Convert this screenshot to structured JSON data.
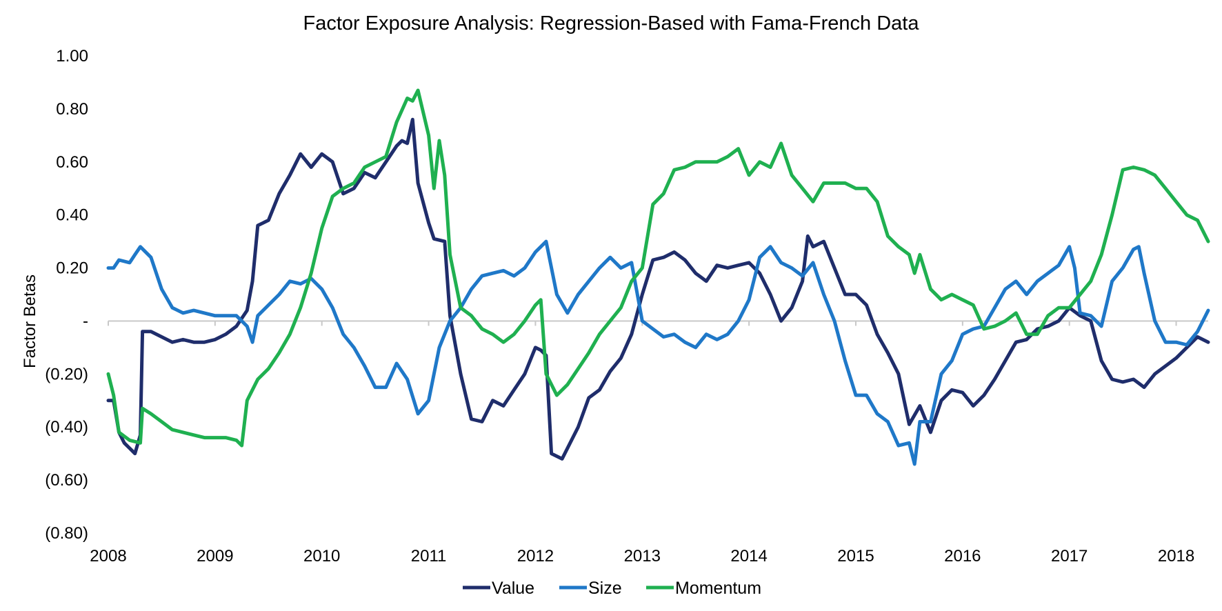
{
  "chart_data": {
    "type": "line",
    "title": "Factor Exposure Analysis: Regression-Based with Fama-French Data",
    "xlabel": "",
    "ylabel": "Factor Betas",
    "xlim": [
      2008.0,
      2018.3
    ],
    "ylim": [
      -0.8,
      1.0
    ],
    "x_ticks": [
      2008,
      2009,
      2010,
      2011,
      2012,
      2013,
      2014,
      2015,
      2016,
      2017,
      2018
    ],
    "x_tick_labels": [
      "2008",
      "2009",
      "2010",
      "2011",
      "2012",
      "2013",
      "2014",
      "2015",
      "2016",
      "2017",
      "2018"
    ],
    "y_ticks": [
      1.0,
      0.8,
      0.6,
      0.4,
      0.2,
      0.0,
      -0.2,
      -0.4,
      -0.6,
      -0.8
    ],
    "y_tick_labels": [
      "1.00",
      "0.80",
      "0.60",
      "0.40",
      "0.20",
      "-",
      "(0.20)",
      "(0.40)",
      "(0.60)",
      "(0.80)"
    ],
    "grid": false,
    "legend_position": "bottom",
    "series": [
      {
        "name": "Value",
        "color": "#1f2d6b",
        "x": [
          2008.0,
          2008.05,
          2008.1,
          2008.15,
          2008.2,
          2008.25,
          2008.3,
          2008.32,
          2008.4,
          2008.5,
          2008.6,
          2008.7,
          2008.8,
          2008.9,
          2009.0,
          2009.1,
          2009.2,
          2009.3,
          2009.35,
          2009.4,
          2009.5,
          2009.6,
          2009.7,
          2009.8,
          2009.9,
          2010.0,
          2010.1,
          2010.2,
          2010.3,
          2010.4,
          2010.5,
          2010.6,
          2010.7,
          2010.75,
          2010.8,
          2010.85,
          2010.9,
          2011.0,
          2011.05,
          2011.15,
          2011.2,
          2011.3,
          2011.4,
          2011.5,
          2011.6,
          2011.7,
          2011.8,
          2011.9,
          2012.0,
          2012.05,
          2012.1,
          2012.15,
          2012.25,
          2012.4,
          2012.5,
          2012.6,
          2012.7,
          2012.8,
          2012.9,
          2013.0,
          2013.1,
          2013.2,
          2013.3,
          2013.4,
          2013.5,
          2013.6,
          2013.7,
          2013.8,
          2013.9,
          2014.0,
          2014.1,
          2014.2,
          2014.3,
          2014.4,
          2014.5,
          2014.55,
          2014.6,
          2014.7,
          2014.8,
          2014.9,
          2015.0,
          2015.1,
          2015.2,
          2015.3,
          2015.4,
          2015.5,
          2015.6,
          2015.7,
          2015.8,
          2015.9,
          2016.0,
          2016.1,
          2016.2,
          2016.3,
          2016.4,
          2016.5,
          2016.6,
          2016.7,
          2016.8,
          2016.9,
          2017.0,
          2017.1,
          2017.2,
          2017.3,
          2017.4,
          2017.5,
          2017.6,
          2017.7,
          2017.8,
          2017.9,
          2018.0,
          2018.1,
          2018.2,
          2018.3
        ],
        "y": [
          -0.3,
          -0.3,
          -0.42,
          -0.46,
          -0.48,
          -0.5,
          -0.43,
          -0.04,
          -0.04,
          -0.06,
          -0.08,
          -0.07,
          -0.08,
          -0.08,
          -0.07,
          -0.05,
          -0.02,
          0.04,
          0.15,
          0.36,
          0.38,
          0.48,
          0.55,
          0.63,
          0.58,
          0.63,
          0.6,
          0.48,
          0.5,
          0.56,
          0.54,
          0.6,
          0.66,
          0.68,
          0.67,
          0.76,
          0.52,
          0.37,
          0.31,
          0.3,
          0.02,
          -0.2,
          -0.37,
          -0.38,
          -0.3,
          -0.32,
          -0.26,
          -0.2,
          -0.1,
          -0.11,
          -0.13,
          -0.5,
          -0.52,
          -0.4,
          -0.29,
          -0.26,
          -0.19,
          -0.14,
          -0.05,
          0.1,
          0.23,
          0.24,
          0.26,
          0.23,
          0.18,
          0.15,
          0.21,
          0.2,
          0.21,
          0.22,
          0.18,
          0.1,
          0.0,
          0.05,
          0.15,
          0.32,
          0.28,
          0.3,
          0.2,
          0.1,
          0.1,
          0.06,
          -0.05,
          -0.12,
          -0.2,
          -0.39,
          -0.32,
          -0.42,
          -0.3,
          -0.26,
          -0.27,
          -0.32,
          -0.28,
          -0.22,
          -0.15,
          -0.08,
          -0.07,
          -0.03,
          -0.02,
          0.0,
          0.05,
          0.02,
          0.0,
          -0.15,
          -0.22,
          -0.23,
          -0.22,
          -0.25,
          -0.2,
          -0.17,
          -0.14,
          -0.1,
          -0.06,
          -0.08
        ]
      },
      {
        "name": "Size",
        "color": "#1f78c8",
        "x": [
          2008.0,
          2008.05,
          2008.1,
          2008.2,
          2008.25,
          2008.3,
          2008.4,
          2008.5,
          2008.6,
          2008.7,
          2008.8,
          2008.9,
          2009.0,
          2009.1,
          2009.2,
          2009.3,
          2009.35,
          2009.4,
          2009.5,
          2009.6,
          2009.7,
          2009.8,
          2009.9,
          2010.0,
          2010.1,
          2010.2,
          2010.3,
          2010.4,
          2010.5,
          2010.6,
          2010.7,
          2010.8,
          2010.9,
          2011.0,
          2011.1,
          2011.2,
          2011.3,
          2011.4,
          2011.5,
          2011.6,
          2011.7,
          2011.8,
          2011.9,
          2012.0,
          2012.05,
          2012.1,
          2012.2,
          2012.3,
          2012.4,
          2012.5,
          2012.6,
          2012.7,
          2012.8,
          2012.9,
          2013.0,
          2013.1,
          2013.2,
          2013.3,
          2013.4,
          2013.5,
          2013.6,
          2013.7,
          2013.8,
          2013.9,
          2014.0,
          2014.1,
          2014.2,
          2014.3,
          2014.4,
          2014.5,
          2014.6,
          2014.7,
          2014.8,
          2014.9,
          2015.0,
          2015.1,
          2015.2,
          2015.3,
          2015.4,
          2015.5,
          2015.55,
          2015.6,
          2015.7,
          2015.8,
          2015.9,
          2016.0,
          2016.1,
          2016.2,
          2016.3,
          2016.4,
          2016.5,
          2016.6,
          2016.7,
          2016.8,
          2016.9,
          2017.0,
          2017.05,
          2017.1,
          2017.2,
          2017.3,
          2017.4,
          2017.5,
          2017.6,
          2017.65,
          2017.7,
          2017.8,
          2017.9,
          2018.0,
          2018.1,
          2018.2,
          2018.3
        ],
        "y": [
          0.2,
          0.2,
          0.23,
          0.22,
          0.25,
          0.28,
          0.24,
          0.12,
          0.05,
          0.03,
          0.04,
          0.03,
          0.02,
          0.02,
          0.02,
          -0.02,
          -0.08,
          0.02,
          0.06,
          0.1,
          0.15,
          0.14,
          0.16,
          0.12,
          0.05,
          -0.05,
          -0.1,
          -0.17,
          -0.25,
          -0.25,
          -0.16,
          -0.22,
          -0.35,
          -0.3,
          -0.1,
          0.0,
          0.05,
          0.12,
          0.17,
          0.18,
          0.19,
          0.17,
          0.2,
          0.26,
          0.28,
          0.3,
          0.1,
          0.03,
          0.1,
          0.15,
          0.2,
          0.24,
          0.2,
          0.22,
          0.0,
          -0.03,
          -0.06,
          -0.05,
          -0.08,
          -0.1,
          -0.05,
          -0.07,
          -0.05,
          0.0,
          0.08,
          0.24,
          0.28,
          0.22,
          0.2,
          0.17,
          0.22,
          0.1,
          0.0,
          -0.15,
          -0.28,
          -0.28,
          -0.35,
          -0.38,
          -0.47,
          -0.46,
          -0.54,
          -0.38,
          -0.38,
          -0.2,
          -0.15,
          -0.05,
          -0.03,
          -0.02,
          0.05,
          0.12,
          0.15,
          0.1,
          0.15,
          0.18,
          0.21,
          0.28,
          0.2,
          0.03,
          0.02,
          -0.02,
          0.15,
          0.2,
          0.27,
          0.28,
          0.18,
          0.0,
          -0.08,
          -0.08,
          -0.09,
          -0.04,
          0.04
        ]
      },
      {
        "name": "Momentum",
        "color": "#1fb050",
        "x": [
          2008.0,
          2008.05,
          2008.1,
          2008.2,
          2008.3,
          2008.32,
          2008.4,
          2008.5,
          2008.6,
          2008.7,
          2008.8,
          2008.9,
          2009.0,
          2009.1,
          2009.2,
          2009.25,
          2009.3,
          2009.4,
          2009.5,
          2009.6,
          2009.7,
          2009.8,
          2009.9,
          2010.0,
          2010.1,
          2010.2,
          2010.3,
          2010.4,
          2010.5,
          2010.6,
          2010.7,
          2010.8,
          2010.85,
          2010.9,
          2011.0,
          2011.05,
          2011.1,
          2011.15,
          2011.2,
          2011.3,
          2011.4,
          2011.5,
          2011.6,
          2011.7,
          2011.8,
          2011.9,
          2012.0,
          2012.05,
          2012.1,
          2012.2,
          2012.3,
          2012.4,
          2012.5,
          2012.6,
          2012.7,
          2012.8,
          2012.9,
          2013.0,
          2013.1,
          2013.2,
          2013.3,
          2013.4,
          2013.5,
          2013.6,
          2013.7,
          2013.8,
          2013.9,
          2014.0,
          2014.1,
          2014.2,
          2014.3,
          2014.4,
          2014.5,
          2014.6,
          2014.7,
          2014.8,
          2014.9,
          2015.0,
          2015.1,
          2015.2,
          2015.3,
          2015.4,
          2015.5,
          2015.55,
          2015.6,
          2015.7,
          2015.8,
          2015.9,
          2016.0,
          2016.1,
          2016.2,
          2016.3,
          2016.4,
          2016.5,
          2016.6,
          2016.7,
          2016.8,
          2016.9,
          2017.0,
          2017.1,
          2017.2,
          2017.3,
          2017.4,
          2017.5,
          2017.6,
          2017.7,
          2017.8,
          2017.9,
          2018.0,
          2018.1,
          2018.2,
          2018.3
        ],
        "y": [
          -0.2,
          -0.28,
          -0.42,
          -0.45,
          -0.46,
          -0.33,
          -0.35,
          -0.38,
          -0.41,
          -0.42,
          -0.43,
          -0.44,
          -0.44,
          -0.44,
          -0.45,
          -0.47,
          -0.3,
          -0.22,
          -0.18,
          -0.12,
          -0.05,
          0.05,
          0.18,
          0.35,
          0.47,
          0.5,
          0.52,
          0.58,
          0.6,
          0.62,
          0.75,
          0.84,
          0.83,
          0.87,
          0.7,
          0.5,
          0.68,
          0.55,
          0.25,
          0.05,
          0.02,
          -0.03,
          -0.05,
          -0.08,
          -0.05,
          0.0,
          0.06,
          0.08,
          -0.2,
          -0.28,
          -0.24,
          -0.18,
          -0.12,
          -0.05,
          0.0,
          0.05,
          0.15,
          0.2,
          0.44,
          0.48,
          0.57,
          0.58,
          0.6,
          0.6,
          0.6,
          0.62,
          0.65,
          0.55,
          0.6,
          0.58,
          0.67,
          0.55,
          0.5,
          0.45,
          0.52,
          0.52,
          0.52,
          0.5,
          0.5,
          0.45,
          0.32,
          0.28,
          0.25,
          0.18,
          0.25,
          0.12,
          0.08,
          0.1,
          0.08,
          0.06,
          -0.03,
          -0.02,
          0.0,
          0.03,
          -0.05,
          -0.05,
          0.02,
          0.05,
          0.05,
          0.1,
          0.15,
          0.25,
          0.4,
          0.57,
          0.58,
          0.57,
          0.55,
          0.5,
          0.45,
          0.4,
          0.38,
          0.3
        ]
      }
    ]
  }
}
